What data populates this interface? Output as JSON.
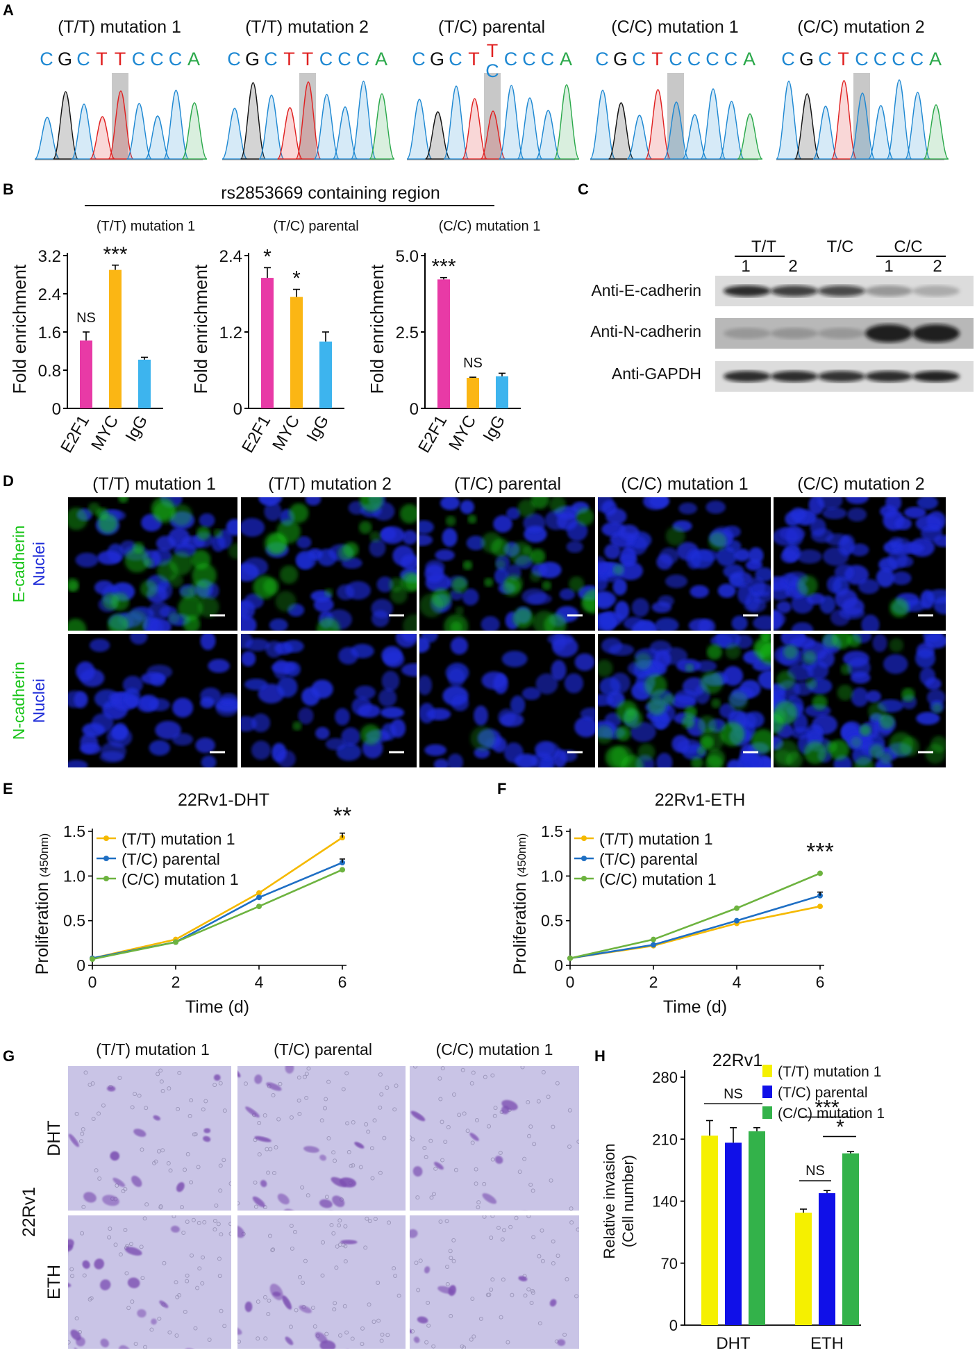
{
  "colors": {
    "tt": "#f5b900",
    "tc": "#1f6fc4",
    "cc": "#6db33f",
    "magenta": "#e83aa6",
    "orange": "#fbb614",
    "cyan": "#3db4ee",
    "h_yellow": "#f5f000",
    "h_blue": "#1010e8",
    "h_green": "#33b24a",
    "base_C": "#1e88d2",
    "base_G": "#111111",
    "base_T": "#e02020",
    "base_A": "#2aa84a",
    "fluor_green": "#18c418",
    "fluor_blue": "#1e2cd8",
    "invasion_stain": "#7c4fb2"
  },
  "panelA": {
    "label": "A",
    "samples": [
      {
        "title": "(T/T) mutation 1",
        "seq": [
          "C",
          "G",
          "C",
          "T",
          "T",
          "C",
          "C",
          "C",
          "A"
        ]
      },
      {
        "title": "(T/T) mutation 2",
        "seq": [
          "C",
          "G",
          "C",
          "T",
          "T",
          "C",
          "C",
          "C",
          "A"
        ]
      },
      {
        "title": "(T/C) parental",
        "seq": [
          "C",
          "G",
          "C",
          "T",
          "",
          "C",
          "C",
          "C",
          "A"
        ],
        "het_top": "T",
        "het_bottom": "C"
      },
      {
        "title": "(C/C) mutation 1",
        "seq": [
          "C",
          "G",
          "C",
          "T",
          "C",
          "C",
          "C",
          "C",
          "A"
        ]
      },
      {
        "title": "(C/C) mutation 2",
        "seq": [
          "C",
          "G",
          "C",
          "T",
          "C",
          "C",
          "C",
          "C",
          "A"
        ]
      }
    ]
  },
  "panelB": {
    "label": "B",
    "region_label": "rs2853669 containing region",
    "ylabel": "Fold enrichment",
    "charts": [
      {
        "title": "(T/T) mutation 1",
        "yticks": [
          "0",
          "0.8",
          "1.6",
          "2.4",
          "3.2"
        ],
        "ymax": 3.2
      },
      {
        "title": "(T/C) parental",
        "yticks": [
          "0",
          "1.2",
          "2.4"
        ],
        "ymax": 2.4
      },
      {
        "title": "(C/C) mutation 1",
        "yticks": [
          "0",
          "2.5",
          "5.0"
        ],
        "ymax": 5.0
      }
    ]
  },
  "panelC": {
    "label": "C",
    "groups": [
      {
        "name": "T/T",
        "lanes": [
          "1",
          "2"
        ]
      },
      {
        "name": "T/C",
        "lanes": []
      },
      {
        "name": "C/C",
        "lanes": [
          "1",
          "2"
        ]
      }
    ],
    "rows": [
      "Anti-E-cadherin",
      "Anti-N-cadherin",
      "Anti-GAPDH"
    ]
  },
  "panelD": {
    "label": "D",
    "columns": [
      "(T/T) mutation 1",
      "(T/T) mutation 2",
      "(T/C) parental",
      "(C/C) mutation 1",
      "(C/C) mutation 2"
    ],
    "rows": [
      {
        "marker": "E-cadherin",
        "counter": "Nuclei",
        "green_intensity": [
          0.55,
          0.35,
          0.5,
          0.05,
          0.04
        ]
      },
      {
        "marker": "N-cadherin",
        "counter": "Nuclei",
        "green_intensity": [
          0.0,
          0.03,
          0.02,
          0.6,
          0.55
        ]
      }
    ]
  },
  "panelE": {
    "label": "E"
  },
  "panelF": {
    "label": "F"
  },
  "panelG": {
    "label": "G",
    "cell_line": "22Rv1",
    "columns": [
      "(T/T) mutation 1",
      "(T/C) parental",
      "(C/C) mutation 1"
    ],
    "rows": [
      "DHT",
      "ETH"
    ]
  },
  "panelH": {
    "label": "H"
  },
  "chart_data": [
    {
      "id": "B1",
      "type": "bar",
      "title": "(T/T) mutation 1",
      "categories": [
        "E2F1",
        "MYC",
        "IgG"
      ],
      "values": [
        1.42,
        2.9,
        1.02
      ],
      "errors": [
        0.18,
        0.1,
        0.05
      ],
      "significance": [
        "NS",
        "***",
        ""
      ],
      "ylabel": "Fold enrichment",
      "ylim": [
        0,
        3.2
      ]
    },
    {
      "id": "B2",
      "type": "bar",
      "title": "(T/C) parental",
      "categories": [
        "E2F1",
        "MYC",
        "IgG"
      ],
      "values": [
        2.05,
        1.75,
        1.05
      ],
      "errors": [
        0.16,
        0.12,
        0.15
      ],
      "significance": [
        "*",
        "*",
        ""
      ],
      "ylabel": "Fold enrichment",
      "ylim": [
        0,
        2.4
      ]
    },
    {
      "id": "B3",
      "type": "bar",
      "title": "(C/C) mutation 1",
      "categories": [
        "E2F1",
        "MYC",
        "IgG"
      ],
      "values": [
        4.22,
        1.0,
        1.05
      ],
      "errors": [
        0.06,
        0.02,
        0.1
      ],
      "significance": [
        "***",
        "NS",
        ""
      ],
      "ylabel": "Fold enrichment",
      "ylim": [
        0,
        5.0
      ]
    },
    {
      "id": "E",
      "type": "line",
      "title": "22Rv1-DHT",
      "x": [
        0,
        2,
        4,
        6
      ],
      "xticks": [
        "0",
        "2",
        "4",
        "6"
      ],
      "yticks": [
        "0",
        "0.5",
        "1.0",
        "1.5"
      ],
      "ylim": [
        0,
        1.5
      ],
      "xlabel": "Time (d)",
      "ylabel": "Proliferation",
      "ylabel_sub": "(450nm)",
      "series": [
        {
          "name": "(T/T) mutation 1",
          "values": [
            0.08,
            0.29,
            0.81,
            1.43
          ],
          "last_error": 0.05
        },
        {
          "name": "(T/C) parental",
          "values": [
            0.08,
            0.26,
            0.76,
            1.15
          ],
          "last_error": 0.04
        },
        {
          "name": "(C/C) mutation 1",
          "values": [
            0.07,
            0.26,
            0.66,
            1.07
          ],
          "last_error": 0.0
        }
      ],
      "significance": "**",
      "legend": "top-left"
    },
    {
      "id": "F",
      "type": "line",
      "title": "22Rv1-ETH",
      "x": [
        0,
        2,
        4,
        6
      ],
      "xticks": [
        "0",
        "2",
        "4",
        "6"
      ],
      "yticks": [
        "0",
        "0.5",
        "1.0",
        "1.5"
      ],
      "ylim": [
        0,
        1.5
      ],
      "xlabel": "Time (d)",
      "ylabel": "Proliferation",
      "ylabel_sub": "(450nm)",
      "series": [
        {
          "name": "(T/T) mutation 1",
          "values": [
            0.08,
            0.22,
            0.47,
            0.66
          ],
          "last_error": 0.0
        },
        {
          "name": "(T/C) parental",
          "values": [
            0.08,
            0.23,
            0.5,
            0.78
          ],
          "last_error": 0.04
        },
        {
          "name": "(C/C) mutation 1",
          "values": [
            0.08,
            0.29,
            0.64,
            1.03
          ],
          "last_error": 0.0
        }
      ],
      "significance": "***",
      "legend": "top-left"
    },
    {
      "id": "H",
      "type": "bar",
      "title": "22Rv1",
      "categories": [
        "DHT",
        "ETH"
      ],
      "series": [
        {
          "name": "(T/T) mutation 1",
          "values": [
            214,
            127
          ],
          "errors": [
            17,
            4
          ]
        },
        {
          "name": "(T/C) parental",
          "values": [
            206,
            149
          ],
          "errors": [
            17,
            3
          ]
        },
        {
          "name": "(C/C) mutation 1",
          "values": [
            219,
            194
          ],
          "errors": [
            4,
            2
          ]
        }
      ],
      "ylabel": "Relative invasion",
      "ylabel_sub": "(Cell number)",
      "yticks": [
        "0",
        "70",
        "140",
        "210",
        "280"
      ],
      "ylim": [
        0,
        280
      ],
      "annotations": [
        {
          "group": "DHT",
          "text": "NS"
        },
        {
          "group": "ETH",
          "text": "NS"
        },
        {
          "group": "ETH",
          "text": "***"
        },
        {
          "group": "ETH",
          "text": "*"
        }
      ],
      "legend": "top-right"
    }
  ]
}
